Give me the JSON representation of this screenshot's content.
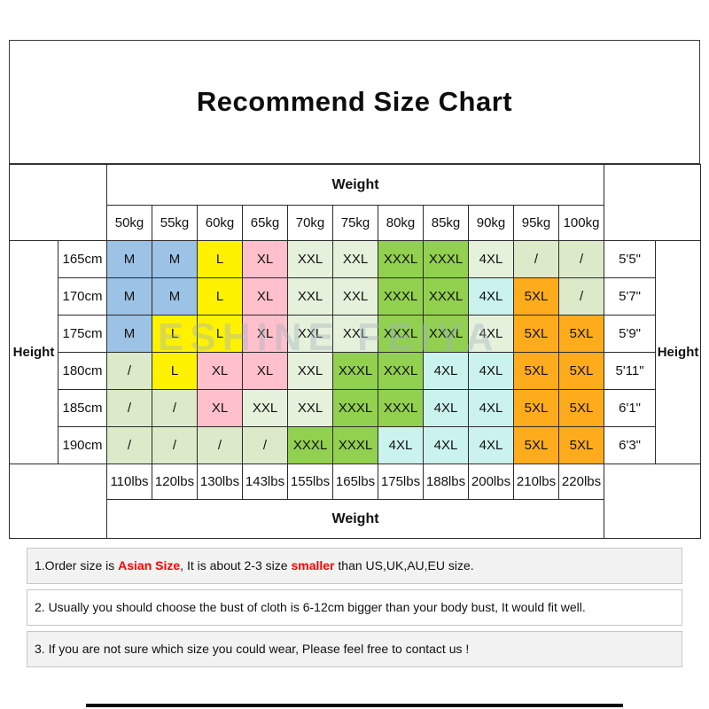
{
  "watermark": "ESHINE FEIYA",
  "colors": {
    "blue": "#9CC2E5",
    "yellow": "#FFF200",
    "pink": "#FFC0CB",
    "pale": "#E5F1DB",
    "pale2": "#DCEAC9",
    "green": "#92D050",
    "cyan": "#CBF3EE",
    "orange": "#FFAC1C",
    "red": "#FF0000"
  },
  "chart_data": {
    "type": "table",
    "title": "Recommend Size Chart",
    "weight_label": "Weight",
    "height_label": "Height",
    "weights_kg": [
      "50kg",
      "55kg",
      "60kg",
      "65kg",
      "70kg",
      "75kg",
      "80kg",
      "85kg",
      "90kg",
      "95kg",
      "100kg"
    ],
    "weights_lbs": [
      "110lbs",
      "120lbs",
      "130lbs",
      "143lbs",
      "155lbs",
      "165lbs",
      "175lbs",
      "188lbs",
      "200lbs",
      "210lbs",
      "220lbs"
    ],
    "rows": [
      {
        "cm": "165cm",
        "ft": "5'5\"",
        "cells": [
          {
            "v": "M",
            "c": "blue"
          },
          {
            "v": "M",
            "c": "blue"
          },
          {
            "v": "L",
            "c": "yellow"
          },
          {
            "v": "XL",
            "c": "pink"
          },
          {
            "v": "XXL",
            "c": "pale"
          },
          {
            "v": "XXL",
            "c": "pale"
          },
          {
            "v": "XXXL",
            "c": "green"
          },
          {
            "v": "XXXL",
            "c": "green"
          },
          {
            "v": "4XL",
            "c": "pale"
          },
          {
            "v": "/",
            "c": "pale2"
          },
          {
            "v": "/",
            "c": "pale2"
          }
        ]
      },
      {
        "cm": "170cm",
        "ft": "5'7\"",
        "cells": [
          {
            "v": "M",
            "c": "blue"
          },
          {
            "v": "M",
            "c": "blue"
          },
          {
            "v": "L",
            "c": "yellow"
          },
          {
            "v": "XL",
            "c": "pink"
          },
          {
            "v": "XXL",
            "c": "pale"
          },
          {
            "v": "XXL",
            "c": "pale"
          },
          {
            "v": "XXXL",
            "c": "green"
          },
          {
            "v": "XXXL",
            "c": "green"
          },
          {
            "v": "4XL",
            "c": "cyan"
          },
          {
            "v": "5XL",
            "c": "orange"
          },
          {
            "v": "/",
            "c": "pale2"
          }
        ]
      },
      {
        "cm": "175cm",
        "ft": "5'9\"",
        "cells": [
          {
            "v": "M",
            "c": "blue"
          },
          {
            "v": "L",
            "c": "yellow"
          },
          {
            "v": "L",
            "c": "yellow"
          },
          {
            "v": "XL",
            "c": "pink"
          },
          {
            "v": "XXL",
            "c": "pale"
          },
          {
            "v": "XXL",
            "c": "pale"
          },
          {
            "v": "XXXL",
            "c": "green"
          },
          {
            "v": "XXXL",
            "c": "green"
          },
          {
            "v": "4XL",
            "c": "pale"
          },
          {
            "v": "5XL",
            "c": "orange"
          },
          {
            "v": "5XL",
            "c": "orange"
          }
        ]
      },
      {
        "cm": "180cm",
        "ft": "5'11\"",
        "cells": [
          {
            "v": "/",
            "c": "pale2"
          },
          {
            "v": "L",
            "c": "yellow"
          },
          {
            "v": "XL",
            "c": "pink"
          },
          {
            "v": "XL",
            "c": "pink"
          },
          {
            "v": "XXL",
            "c": "pale"
          },
          {
            "v": "XXXL",
            "c": "green"
          },
          {
            "v": "XXXL",
            "c": "green"
          },
          {
            "v": "4XL",
            "c": "cyan"
          },
          {
            "v": "4XL",
            "c": "cyan"
          },
          {
            "v": "5XL",
            "c": "orange"
          },
          {
            "v": "5XL",
            "c": "orange"
          }
        ]
      },
      {
        "cm": "185cm",
        "ft": "6'1\"",
        "cells": [
          {
            "v": "/",
            "c": "pale2"
          },
          {
            "v": "/",
            "c": "pale2"
          },
          {
            "v": "XL",
            "c": "pink"
          },
          {
            "v": "XXL",
            "c": "pale"
          },
          {
            "v": "XXL",
            "c": "pale"
          },
          {
            "v": "XXXL",
            "c": "green"
          },
          {
            "v": "XXXL",
            "c": "green"
          },
          {
            "v": "4XL",
            "c": "cyan"
          },
          {
            "v": "4XL",
            "c": "cyan"
          },
          {
            "v": "5XL",
            "c": "orange"
          },
          {
            "v": "5XL",
            "c": "orange"
          }
        ]
      },
      {
        "cm": "190cm",
        "ft": "6'3\"",
        "cells": [
          {
            "v": "/",
            "c": "pale2"
          },
          {
            "v": "/",
            "c": "pale2"
          },
          {
            "v": "/",
            "c": "pale2"
          },
          {
            "v": "/",
            "c": "pale2"
          },
          {
            "v": "XXXL",
            "c": "green"
          },
          {
            "v": "XXXL",
            "c": "green"
          },
          {
            "v": "4XL",
            "c": "cyan"
          },
          {
            "v": "4XL",
            "c": "cyan"
          },
          {
            "v": "4XL",
            "c": "cyan"
          },
          {
            "v": "5XL",
            "c": "orange"
          },
          {
            "v": "5XL",
            "c": "orange"
          }
        ]
      }
    ]
  },
  "notes": [
    {
      "shaded": true,
      "parts": [
        {
          "t": "1.Order size is ",
          "red": false
        },
        {
          "t": "Asian Size",
          "red": true
        },
        {
          "t": ", It is about 2-3 size ",
          "red": false
        },
        {
          "t": "smaller",
          "red": true
        },
        {
          "t": " than US,UK,AU,EU size.",
          "red": false
        }
      ]
    },
    {
      "shaded": false,
      "parts": [
        {
          "t": "2. Usually you should choose the bust of cloth is 6-12cm bigger than your body bust, It would fit well.",
          "red": false
        }
      ]
    },
    {
      "shaded": true,
      "parts": [
        {
          "t": "3. If you are not sure which size you could wear, Please feel free to contact us !",
          "red": false
        }
      ]
    }
  ]
}
